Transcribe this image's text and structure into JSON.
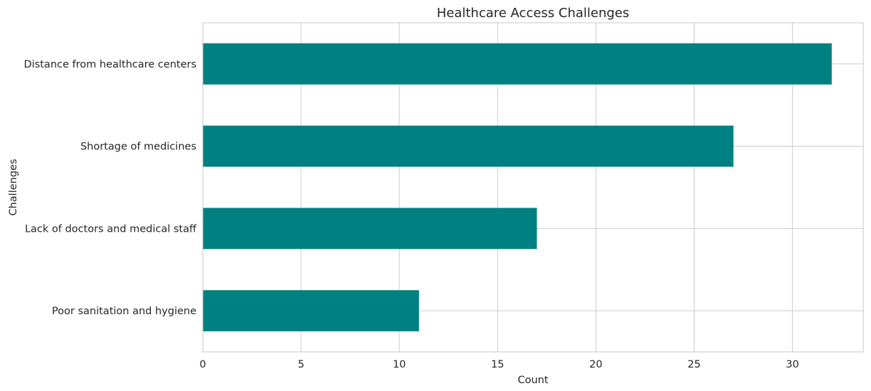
{
  "chart_data": {
    "type": "bar",
    "orientation": "horizontal",
    "title": "Healthcare Access Challenges",
    "xlabel": "Count",
    "ylabel": "Challenges",
    "categories": [
      "Distance from healthcare centers",
      "Shortage of medicines",
      "Lack of doctors and medical staff",
      "Poor sanitation and hygiene"
    ],
    "values": [
      32,
      27,
      17,
      11
    ],
    "xlim": [
      0,
      33.6
    ],
    "xticks": [
      0,
      5,
      10,
      15,
      20,
      25,
      30
    ],
    "grid": true,
    "legend": "none",
    "bar_color": "#008080",
    "grid_color": "#cccccc"
  }
}
